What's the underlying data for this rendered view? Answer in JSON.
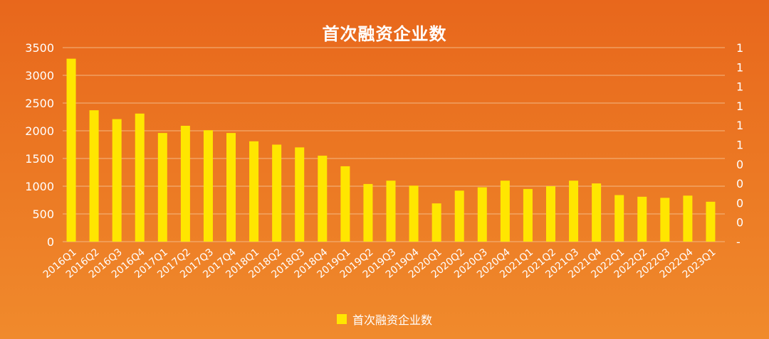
{
  "chart_data": {
    "type": "bar",
    "title": "首次融资企业数",
    "categories": [
      "2016Q1",
      "2016Q2",
      "2016Q3",
      "2016Q4",
      "2017Q1",
      "2017Q2",
      "2017Q3",
      "2017Q4",
      "2018Q1",
      "2018Q2",
      "2018Q3",
      "2018Q4",
      "2019Q1",
      "2019Q2",
      "2019Q3",
      "2019Q4",
      "2020Q1",
      "2020Q2",
      "2020Q3",
      "2020Q4",
      "2021Q1",
      "2021Q2",
      "2021Q3",
      "2021Q4",
      "2022Q1",
      "2022Q2",
      "2022Q3",
      "2022Q4",
      "2023Q1"
    ],
    "series": [
      {
        "name": "首次融资企业数",
        "color": "#ffe600",
        "values": [
          3300,
          2370,
          2210,
          2310,
          1960,
          2090,
          2010,
          1960,
          1810,
          1750,
          1700,
          1550,
          1360,
          1040,
          1100,
          1010,
          690,
          920,
          980,
          1100,
          950,
          1000,
          1100,
          1050,
          840,
          810,
          790,
          830,
          720
        ]
      }
    ],
    "ylim": [
      0,
      3500
    ],
    "y_ticks": [
      "0",
      "500",
      "1000",
      "1500",
      "2000",
      "2500",
      "3000",
      "3500"
    ],
    "y2_ticks": [
      "-",
      "0",
      "0",
      "0",
      "0",
      "1",
      "1",
      "1",
      "1",
      "1",
      "1"
    ],
    "grid": true,
    "legend_position": "bottom-center",
    "colors": {
      "background": "#e8671c",
      "bar": "#ffe600",
      "text": "#ffffff",
      "grid": "#f5c08e"
    }
  }
}
